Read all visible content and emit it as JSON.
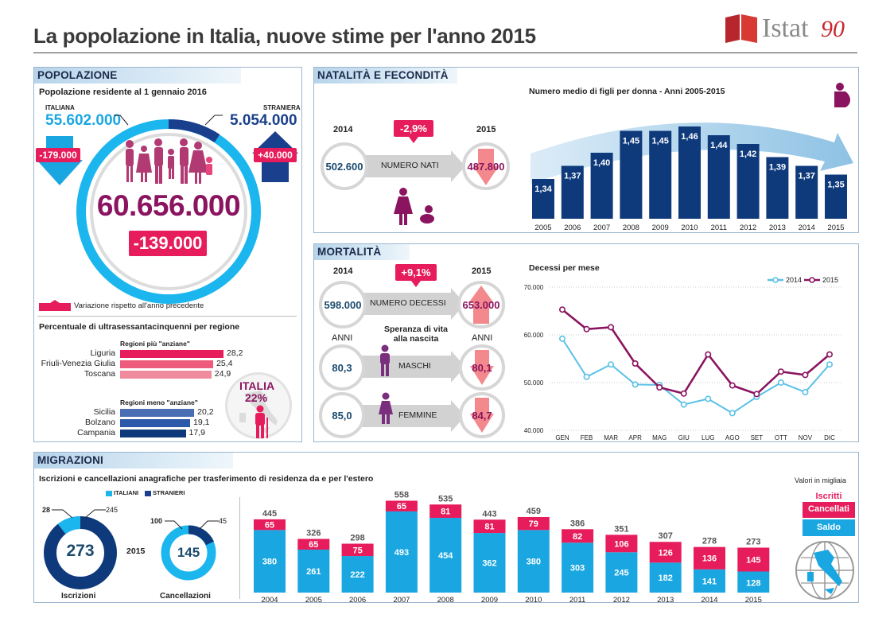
{
  "header": {
    "title": "La popolazione in Italia, nuove stime per l'anno 2015",
    "logo_text": "Istat",
    "logo_number": "90"
  },
  "popolazione": {
    "section": "POPOLAZIONE",
    "subtitle": "Popolazione residente al 1 gennaio 2016",
    "italiana_label": "ITALIANA",
    "italiana_value": "55.602.000",
    "italiana_delta": "-179.000",
    "straniera_label": "STRANIERA",
    "straniera_value": "5.054.000",
    "straniera_delta": "+40.000",
    "total": "60.656.000",
    "total_delta": "-139.000",
    "legend": "Variazione rispetto all'anno precedente",
    "over65_title": "Percentuale di ultrasessantacinquenni per regione",
    "piu_anziane_label": "Regioni più \"anziane\"",
    "meno_anziane_label": "Regioni meno \"anziane\"",
    "italia_label": "ITALIA",
    "italia_value": "22%"
  },
  "natalita": {
    "section": "NATALITÀ E FECONDITÀ",
    "year_a": "2014",
    "year_b": "2015",
    "value_a": "502.600",
    "value_b": "487.800",
    "label": "NUMERO NATI",
    "delta": "-2,9%",
    "fert_title": "Numero medio di figli per donna - Anni 2005-2015"
  },
  "mortalita": {
    "section": "MORTALITÀ",
    "year_a": "2014",
    "year_b": "2015",
    "value_a": "598.000",
    "value_b": "653.000",
    "label": "NUMERO DECESSI",
    "delta": "+9,1%",
    "anni_left": "ANNI",
    "anni_right": "ANNI",
    "speranza_title": "Speranza di vita alla nascita",
    "maschi_label": "MASCHI",
    "maschi_a": "80,3",
    "maschi_b": "80,1",
    "femmine_label": "FEMMINE",
    "femmine_a": "85,0",
    "femmine_b": "84,7",
    "deaths_title": "Decessi per mese",
    "legend_2014": "2014",
    "legend_2015": "2015"
  },
  "migrazioni": {
    "section": "MIGRAZIONI",
    "subtitle": "Iscrizioni e cancellazioni anagrafiche per trasferimento di residenza da e per l'estero",
    "valori": "Valori in migliaia",
    "legend_italiani": "ITALIANI",
    "legend_stranieri": "STRANIERI",
    "year": "2015",
    "iscrizioni_label": "Iscrizioni",
    "iscrizioni_total": "273",
    "iscrizioni_italiani": "28",
    "iscrizioni_stranieri": "245",
    "cancellazioni_label": "Cancellazioni",
    "cancellazioni_total": "145",
    "cancellazioni_italiani": "100",
    "cancellazioni_stranieri": "45",
    "legend_iscritti": "Iscritti",
    "legend_cancellati": "Cancellati",
    "legend_saldo": "Saldo"
  },
  "colors": {
    "navy": "#0e3a7c",
    "magenta": "#e61c5c",
    "cyan": "#1aa7e1",
    "teal": "#1a4a6e",
    "plum": "#8b1460",
    "light_blue_line": "#5bc1e6"
  },
  "chart_data": [
    {
      "id": "over65",
      "type": "bar",
      "orientation": "horizontal",
      "title": "Percentuale di ultrasessantacinquenni per regione",
      "series": [
        {
          "name": "Regioni più \"anziane\"",
          "categories": [
            "Liguria",
            "Friuli-Venezia Giulia",
            "Toscana"
          ],
          "values": [
            28.2,
            25.4,
            24.9
          ],
          "labels": [
            "28,2",
            "25,4",
            "24,9"
          ]
        },
        {
          "name": "Regioni meno \"anziane\"",
          "categories": [
            "Sicilia",
            "Bolzano",
            "Campania"
          ],
          "values": [
            20.2,
            19.1,
            17.9
          ],
          "labels": [
            "20,2",
            "19,1",
            "17,9"
          ]
        }
      ]
    },
    {
      "id": "fertility",
      "type": "bar",
      "title": "Numero medio di figli per donna - Anni 2005-2015",
      "categories": [
        "2005",
        "2006",
        "2007",
        "2008",
        "2009",
        "2010",
        "2011",
        "2012",
        "2013",
        "2014",
        "2015"
      ],
      "values": [
        1.34,
        1.37,
        1.4,
        1.45,
        1.45,
        1.46,
        1.44,
        1.42,
        1.39,
        1.37,
        1.35
      ],
      "labels": [
        "1,34",
        "1,37",
        "1,40",
        "1,45",
        "1,45",
        "1,46",
        "1,44",
        "1,42",
        "1,39",
        "1,37",
        "1,35"
      ]
    },
    {
      "id": "deaths",
      "type": "line",
      "title": "Decessi per mese",
      "categories": [
        "GEN",
        "FEB",
        "MAR",
        "APR",
        "MAG",
        "GIU",
        "LUG",
        "AGO",
        "SET",
        "OTT",
        "NOV",
        "DIC"
      ],
      "ylim": [
        40000,
        70000
      ],
      "yticks": [
        40000,
        50000,
        60000,
        70000
      ],
      "ytick_labels": [
        "40.000",
        "50.000",
        "60.000",
        "70.000"
      ],
      "legend": "top-right",
      "series": [
        {
          "name": "2014",
          "values": [
            59200,
            51200,
            53800,
            49600,
            49500,
            45400,
            46600,
            43600,
            47000,
            50000,
            48000,
            53800
          ]
        },
        {
          "name": "2015",
          "values": [
            65300,
            61200,
            61600,
            54000,
            49000,
            47700,
            55900,
            49400,
            47600,
            52300,
            51600,
            55900
          ]
        }
      ]
    },
    {
      "id": "migrations",
      "type": "bar",
      "stacked": true,
      "title": "Iscrizioni e cancellazioni anagrafiche per trasferimento di residenza da e per l'estero",
      "categories": [
        "2004",
        "2005",
        "2006",
        "2007",
        "2008",
        "2009",
        "2010",
        "2011",
        "2012",
        "2013",
        "2014",
        "2015"
      ],
      "series": [
        {
          "name": "Iscritti",
          "values": [
            445,
            326,
            298,
            558,
            535,
            443,
            459,
            386,
            351,
            307,
            278,
            273
          ]
        },
        {
          "name": "Cancellati",
          "values": [
            65,
            65,
            75,
            65,
            81,
            81,
            79,
            82,
            106,
            126,
            136,
            145
          ]
        },
        {
          "name": "Saldo",
          "values": [
            380,
            261,
            222,
            493,
            454,
            362,
            380,
            303,
            245,
            182,
            141,
            128
          ]
        }
      ],
      "unit": "Valori in migliaia"
    }
  ]
}
